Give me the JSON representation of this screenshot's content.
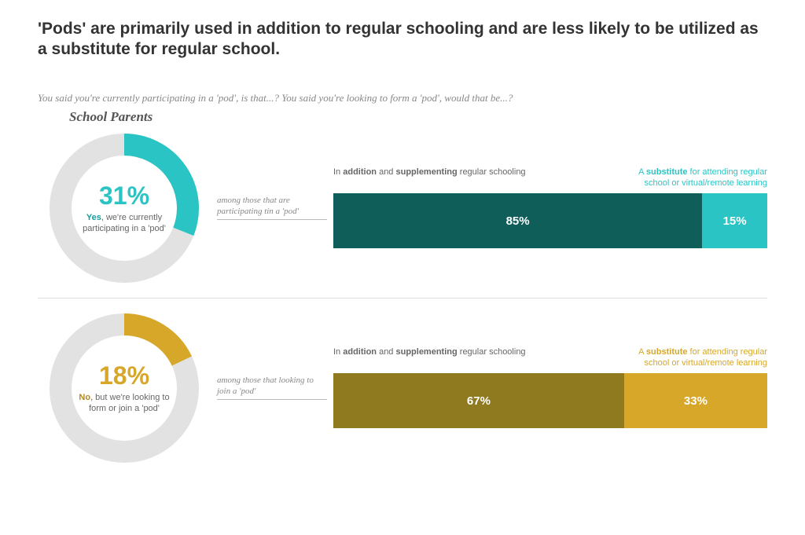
{
  "title": "'Pods' are primarily used in addition to regular schooling and are less likely to be utilized as a substitute for regular school.",
  "question": "You said you're currently participating in a 'pod', is that...? You said you're looking to form a 'pod', would that be...?",
  "subheading": "School Parents",
  "colors": {
    "ring_bg": "#e2e2e2",
    "teal_accent": "#2bc4c4",
    "teal_dark": "#0f5e5a",
    "gold_accent": "#d6a728",
    "gold_dark": "#8f7a1f",
    "text_gray": "#666666"
  },
  "rows": [
    {
      "donut": {
        "pct": 31,
        "pct_text": "31%",
        "ring_color": "#2bc4c4",
        "em_word": "Yes",
        "em_color": "#159e9e",
        "rest": ", we're currently participating in a 'pod'"
      },
      "connector": "among those that are participating tin a 'pod'",
      "bar": {
        "left_header_pre": "In ",
        "left_header_b1": "addition",
        "left_header_mid": " and ",
        "left_header_b2": "supplementing",
        "left_header_post": " regular schooling",
        "right_header_pre": "A ",
        "right_header_b": "substitute",
        "right_header_post": " for attending regular school or virtual/remote learning",
        "right_color": "#2bc4c4",
        "seg1": {
          "pct": 85,
          "label": "85%",
          "color": "#0f5e5a"
        },
        "seg2": {
          "pct": 15,
          "label": "15%",
          "color": "#2bc4c4"
        }
      }
    },
    {
      "donut": {
        "pct": 18,
        "pct_text": "18%",
        "ring_color": "#d6a728",
        "em_word": "No",
        "em_color": "#b58a1a",
        "rest": ", but we're looking to form or join a 'pod'"
      },
      "connector": "among those that looking to join a 'pod'",
      "bar": {
        "left_header_pre": "In ",
        "left_header_b1": "addition",
        "left_header_mid": " and ",
        "left_header_b2": "supplementing",
        "left_header_post": " regular schooling",
        "right_header_pre": "A ",
        "right_header_b": "substitute",
        "right_header_post": " for attending regular school or virtual/remote learning",
        "right_color": "#d6a728",
        "seg1": {
          "pct": 67,
          "label": "67%",
          "color": "#8f7a1f"
        },
        "seg2": {
          "pct": 33,
          "label": "33%",
          "color": "#d6a728"
        }
      }
    }
  ],
  "donut_style": {
    "outer_r": 95,
    "inner_r": 67,
    "start_angle_deg": -90
  }
}
